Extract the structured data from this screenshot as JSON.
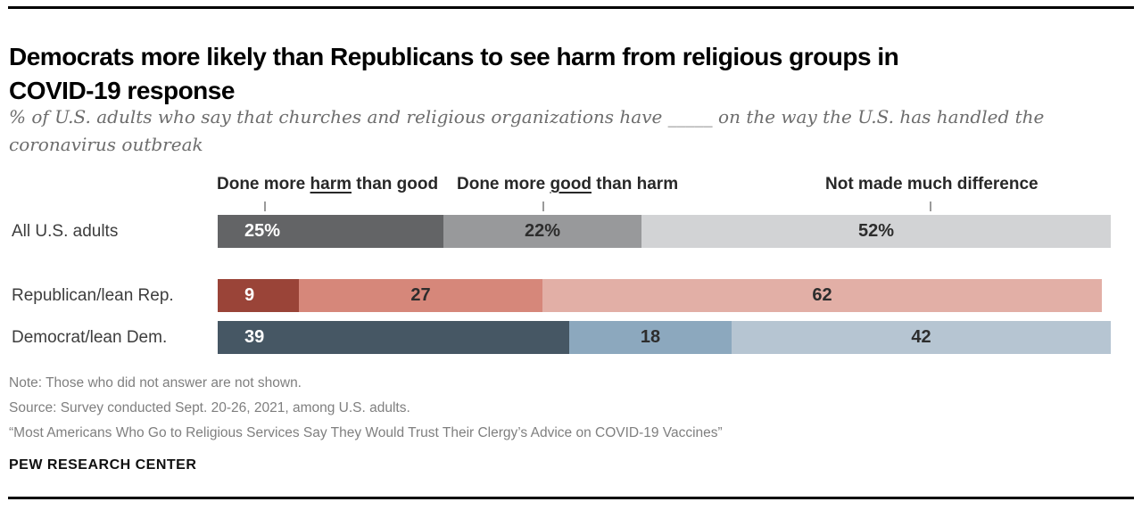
{
  "page": {
    "title_lines": [
      "Democrats more likely than Republicans to see harm from religious groups in",
      "COVID-19 response"
    ],
    "subtitle_lines": [
      "% of U.S. adults who say that churches and religious organizations have _____ on the way the U.S. has handled the",
      "coronavirus outbreak"
    ],
    "notes_lines": [
      "Note: Those who did not answer are not shown.",
      "Source: Survey conducted Sept. 20-26, 2021, among U.S. adults.",
      "“Most Americans Who Go to Religious Services Say They Would Trust Their Clergy’s Advice on COVID-19 Vaccines”"
    ],
    "brand": "PEW RESEARCH CENTER"
  },
  "headers": [
    {
      "pre": "Done more ",
      "underline": "harm",
      "post": " than good"
    },
    {
      "pre": "Done more ",
      "underline": "good",
      "post": " than harm"
    },
    {
      "pre": "",
      "underline": "",
      "post": "Not made much difference"
    }
  ],
  "chart_data": {
    "type": "bar",
    "orientation": "horizontal",
    "stacked": true,
    "title": "Democrats more likely than Republicans to see harm from religious groups in COVID-19 response",
    "categories": [
      "All U.S. adults",
      "Republican/lean Rep.",
      "Democrat/lean Dem."
    ],
    "series": [
      {
        "name": "Done more harm than good",
        "values": [
          25,
          9,
          39
        ]
      },
      {
        "name": "Done more good than harm",
        "values": [
          22,
          27,
          18
        ]
      },
      {
        "name": "Not made much difference",
        "values": [
          52,
          62,
          42
        ]
      }
    ],
    "value_labels": [
      [
        "25%",
        "22%",
        "52%"
      ],
      [
        "9",
        "27",
        "62"
      ],
      [
        "39",
        "18",
        "42"
      ]
    ],
    "unit": "percent",
    "xlim": [
      0,
      100
    ],
    "grid": false,
    "legend_position": "column-headers-above-bars"
  },
  "colors": {
    "row_palettes": [
      [
        "#636466",
        "#98999B",
        "#D2D3D5"
      ],
      [
        "#9A4438",
        "#D6877A",
        "#E2AFA6"
      ],
      [
        "#465764",
        "#8CA8BE",
        "#B6C5D2"
      ]
    ],
    "first_segment_text": "#FFFFFF",
    "segment_text": "#2D2D2D",
    "rule": "#000000",
    "tick": "#9A9A9A"
  }
}
